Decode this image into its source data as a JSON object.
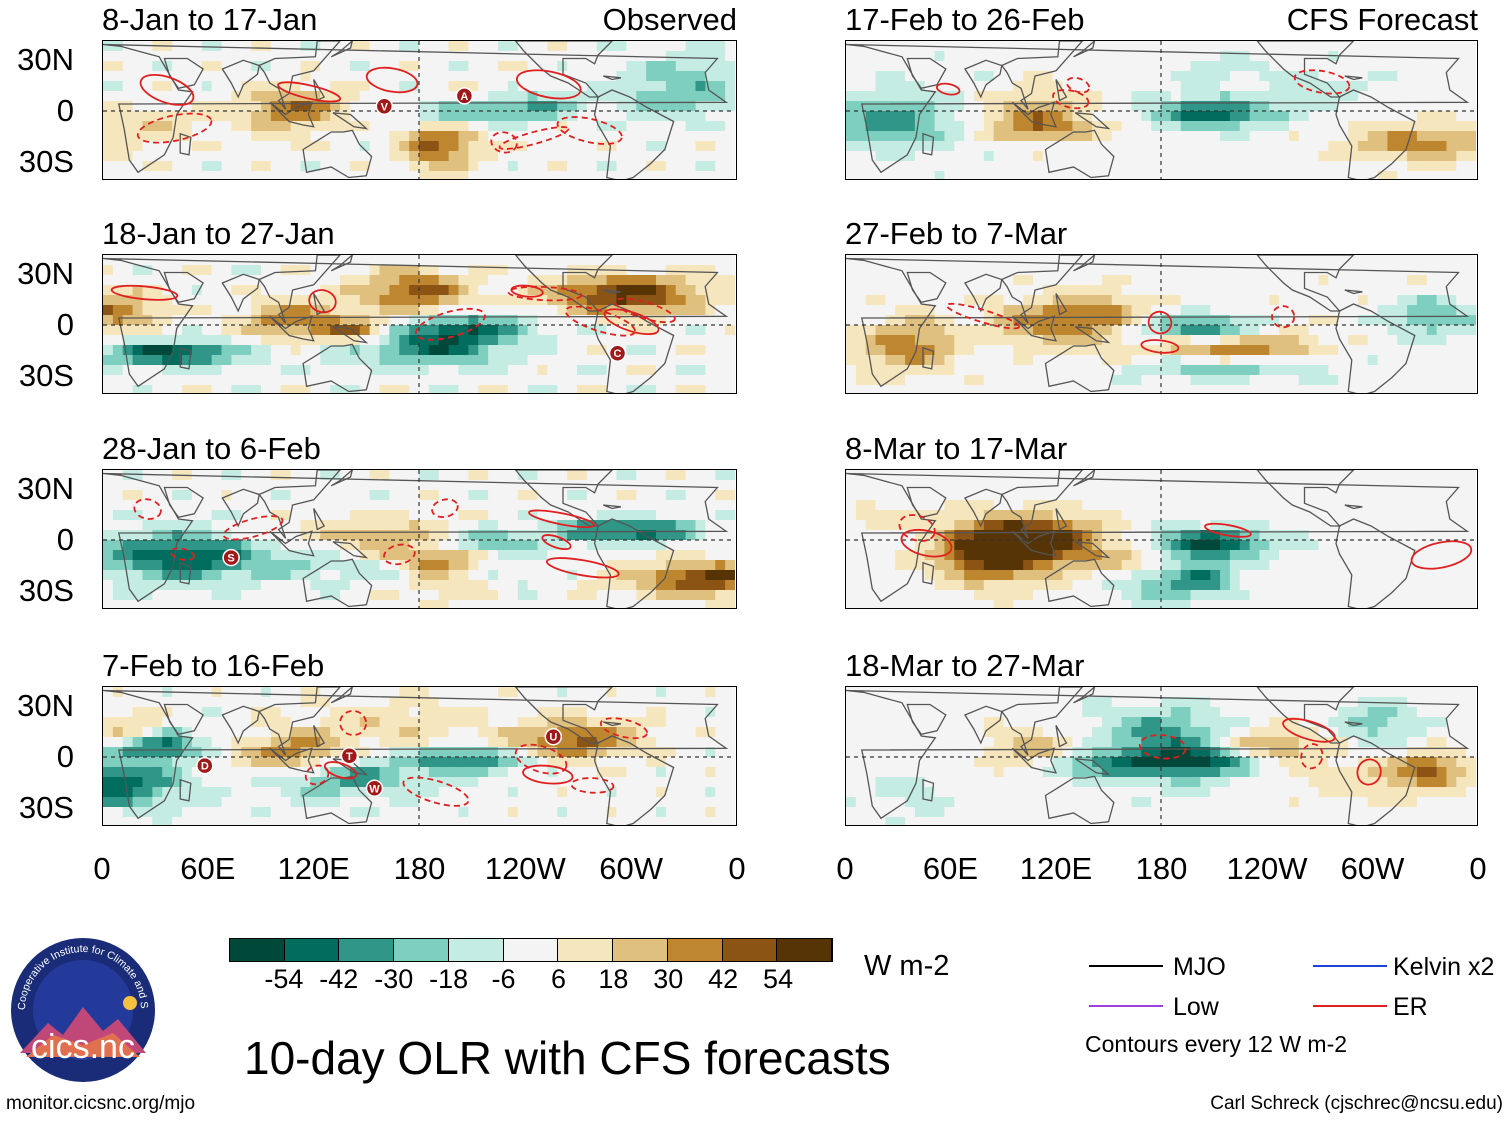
{
  "observed_label": "Observed",
  "forecast_label": "CFS Forecast",
  "lat_labels": [
    "30N",
    "0",
    "30S"
  ],
  "lon_labels": [
    "0",
    "60E",
    "120E",
    "180",
    "120W",
    "60W",
    "0"
  ],
  "panels": [
    {
      "id": "obs-1",
      "title": "8-Jan to 17-Jan",
      "kind": "observed"
    },
    {
      "id": "obs-2",
      "title": "18-Jan to 27-Jan",
      "kind": "observed"
    },
    {
      "id": "obs-3",
      "title": "28-Jan to 6-Feb",
      "kind": "observed"
    },
    {
      "id": "obs-4",
      "title": "7-Feb to 16-Feb",
      "kind": "observed"
    },
    {
      "id": "fc-1",
      "title": "17-Feb to 26-Feb",
      "kind": "forecast"
    },
    {
      "id": "fc-2",
      "title": "27-Feb to 7-Mar",
      "kind": "forecast"
    },
    {
      "id": "fc-3",
      "title": "8-Mar to 17-Mar",
      "kind": "forecast"
    },
    {
      "id": "fc-4",
      "title": "18-Mar to 27-Mar",
      "kind": "forecast"
    }
  ],
  "storm_markers": [
    {
      "panel": "obs-1",
      "letter": "A"
    },
    {
      "panel": "obs-1",
      "letter": "V"
    },
    {
      "panel": "obs-2",
      "letter": "C"
    },
    {
      "panel": "obs-3",
      "letter": "S"
    },
    {
      "panel": "obs-4",
      "letter": "D"
    },
    {
      "panel": "obs-4",
      "letter": "U"
    },
    {
      "panel": "obs-4",
      "letter": "T"
    },
    {
      "panel": "obs-4",
      "letter": "W"
    }
  ],
  "colorbar": {
    "ticks": [
      "-54",
      "-42",
      "-30",
      "-18",
      "-6",
      "6",
      "18",
      "30",
      "42",
      "54"
    ],
    "colors": [
      "#00483a",
      "#006d5f",
      "#2f9688",
      "#7ecfbf",
      "#c4ece2",
      "#f4f4f4",
      "#f6e6bd",
      "#dfc07f",
      "#bf8630",
      "#8c5414",
      "#563405"
    ],
    "units": "W m-2"
  },
  "legend": {
    "items": [
      {
        "label": "MJO",
        "color": "#000000"
      },
      {
        "label": "Kelvin x2",
        "color": "#2040e0"
      },
      {
        "label": "Low",
        "color": "#a040e0"
      },
      {
        "label": "ER",
        "color": "#e02020"
      }
    ],
    "contour_note": "Contours every 12 W m-2"
  },
  "main_title": "10-day OLR with CFS forecasts",
  "logo_text": "cics.nc",
  "logo_ring_text": "Cooperative Institute for Climate and Satellites",
  "footer_left": "monitor.cicsnc.org/mjo",
  "footer_right": "Carl Schreck (cjschrec@ncsu.edu)"
}
